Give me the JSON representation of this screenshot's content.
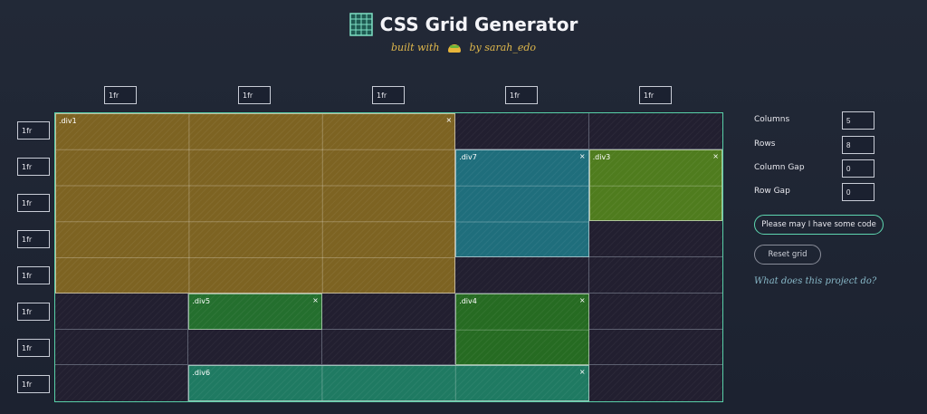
{
  "header": {
    "title": "CSS Grid Generator",
    "subtitle_prefix": "built with",
    "subtitle_suffix": "by sarah_edo",
    "logo_icon": "grid-logo-icon",
    "taco_icon": "taco-icon"
  },
  "columns_fr": [
    "1fr",
    "1fr",
    "1fr",
    "1fr",
    "1fr"
  ],
  "rows_fr": [
    "1fr",
    "1fr",
    "1fr",
    "1fr",
    "1fr",
    "1fr",
    "1fr",
    "1fr"
  ],
  "grid": {
    "columns": 5,
    "rows": 8,
    "items": [
      {
        "label": ".div1",
        "col_start": 1,
        "col_end": 4,
        "row_start": 1,
        "row_end": 6,
        "color": "#7d6322",
        "closable": true
      },
      {
        "label": ".div7",
        "col_start": 4,
        "col_end": 5,
        "row_start": 2,
        "row_end": 5,
        "color": "#1f6e7c",
        "closable": true
      },
      {
        "label": ".div3",
        "col_start": 5,
        "col_end": 6,
        "row_start": 2,
        "row_end": 4,
        "color": "#4f7c1e",
        "closable": true
      },
      {
        "label": ".div5",
        "col_start": 2,
        "col_end": 3,
        "row_start": 6,
        "row_end": 7,
        "color": "#246f2e",
        "closable": true
      },
      {
        "label": ".div4",
        "col_start": 4,
        "col_end": 5,
        "row_start": 6,
        "row_end": 8,
        "color": "#266b22",
        "closable": true
      },
      {
        "label": ".div6",
        "col_start": 2,
        "col_end": 5,
        "row_start": 8,
        "row_end": 9,
        "color": "#1f7a62",
        "closable": true
      }
    ],
    "close_glyph": "×"
  },
  "controls": {
    "columns_label": "Columns",
    "columns_value": "5",
    "rows_label": "Rows",
    "rows_value": "8",
    "column_gap_label": "Column Gap",
    "column_gap_value": "0",
    "row_gap_label": "Row Gap",
    "row_gap_value": "0",
    "code_button": "Please may I have some code",
    "reset_button": "Reset grid",
    "help_link": "What does this project do?"
  }
}
